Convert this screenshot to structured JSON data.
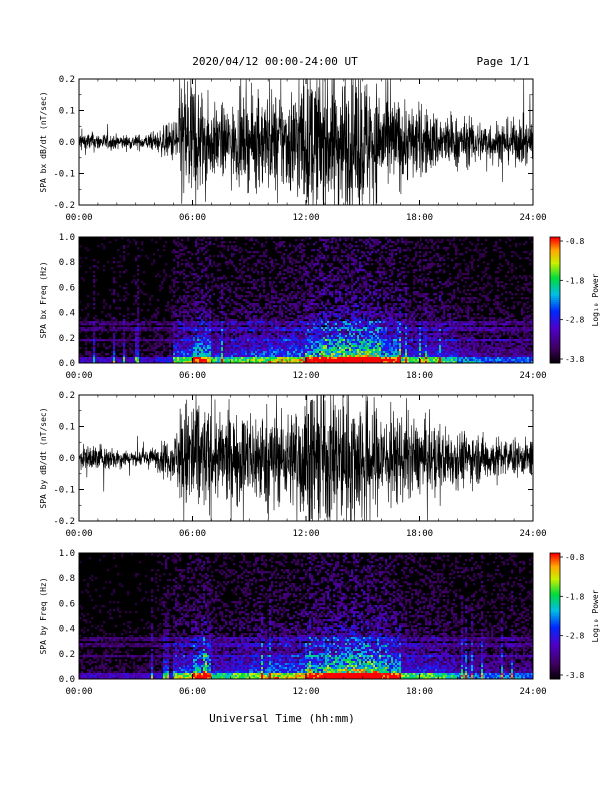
{
  "header": {
    "title": "2020/04/12  00:00-24:00 UT",
    "page": "Page 1/1"
  },
  "footer": {
    "xlabel": "Universal Time (hh:mm)"
  },
  "chart_data": [
    {
      "type": "line",
      "ylabel": "SPA bx dB/dt (nT/sec)",
      "xlabel": "",
      "x_ticks": [
        "00:00",
        "06:00",
        "12:00",
        "18:00",
        "24:00"
      ],
      "xlim": [
        "00:00",
        "24:00"
      ],
      "ylim": [
        -0.2,
        0.2
      ],
      "y_ticks": [
        "0.2",
        "0.1",
        "0.0",
        "-0.1",
        "-0.2"
      ],
      "grid": false,
      "series": [
        {
          "x": [
            "00:00",
            "01:00",
            "02:00",
            "03:00",
            "04:00",
            "05:00",
            "05:30",
            "06:00",
            "07:00",
            "08:00",
            "09:00",
            "10:00",
            "11:00",
            "12:00",
            "13:00",
            "14:00",
            "15:00",
            "16:00",
            "17:00",
            "18:00",
            "19:00",
            "20:00",
            "21:00",
            "22:00",
            "23:00",
            "24:00"
          ],
          "amplitude": [
            0.03,
            0.025,
            0.02,
            0.02,
            0.025,
            0.06,
            0.2,
            0.2,
            0.1,
            0.1,
            0.12,
            0.14,
            0.14,
            0.2,
            0.2,
            0.2,
            0.2,
            0.15,
            0.12,
            0.1,
            0.08,
            0.07,
            0.06,
            0.06,
            0.06,
            0.07
          ],
          "color": "#000000"
        }
      ]
    },
    {
      "type": "heatmap",
      "ylabel": "SPA bx Freq (Hz)",
      "x_ticks": [
        "00:00",
        "06:00",
        "12:00",
        "18:00",
        "24:00"
      ],
      "y_ticks": [
        "1.0",
        "0.8",
        "0.6",
        "0.4",
        "0.2",
        "0.0"
      ],
      "ylim": [
        0.0,
        1.0
      ],
      "colorbar": {
        "label": "Log₁₀ Power",
        "ticks": [
          "-0.8",
          "-1.8",
          "-2.8",
          "-3.8"
        ],
        "range": [
          -3.8,
          -0.8
        ]
      },
      "activity_by_hour": [
        0.1,
        0.1,
        0.1,
        0.1,
        0.15,
        0.5,
        0.7,
        0.4,
        0.45,
        0.5,
        0.55,
        0.55,
        0.75,
        0.85,
        0.95,
        0.95,
        0.7,
        0.45,
        0.45,
        0.4,
        0.3,
        0.25,
        0.25,
        0.25
      ]
    },
    {
      "type": "line",
      "ylabel": "SPA by dB/dt (nT/sec)",
      "xlabel": "",
      "x_ticks": [
        "00:00",
        "06:00",
        "12:00",
        "18:00",
        "24:00"
      ],
      "xlim": [
        "00:00",
        "24:00"
      ],
      "ylim": [
        -0.2,
        0.2
      ],
      "y_ticks": [
        "0.2",
        "0.1",
        "0.0",
        "-0.1",
        "-0.2"
      ],
      "grid": false,
      "series": [
        {
          "x": [
            "00:00",
            "01:00",
            "02:00",
            "03:00",
            "04:00",
            "05:00",
            "05:30",
            "06:00",
            "07:00",
            "08:00",
            "09:00",
            "10:00",
            "11:00",
            "12:00",
            "13:00",
            "14:00",
            "15:00",
            "16:00",
            "17:00",
            "18:00",
            "19:00",
            "20:00",
            "21:00",
            "22:00",
            "23:00",
            "24:00"
          ],
          "amplitude": [
            0.03,
            0.04,
            0.03,
            0.02,
            0.03,
            0.06,
            0.15,
            0.2,
            0.12,
            0.12,
            0.13,
            0.14,
            0.12,
            0.2,
            0.2,
            0.19,
            0.18,
            0.14,
            0.12,
            0.1,
            0.09,
            0.08,
            0.07,
            0.06,
            0.05,
            0.05
          ],
          "color": "#000000"
        }
      ]
    },
    {
      "type": "heatmap",
      "ylabel": "SPA by Freq (Hz)",
      "x_ticks": [
        "00:00",
        "06:00",
        "12:00",
        "18:00",
        "24:00"
      ],
      "y_ticks": [
        "1.0",
        "0.8",
        "0.6",
        "0.4",
        "0.2",
        "0.0"
      ],
      "ylim": [
        0.0,
        1.0
      ],
      "colorbar": {
        "label": "Log₁₀ Power",
        "ticks": [
          "-0.8",
          "-1.8",
          "-2.8",
          "-3.8"
        ],
        "range": [
          -3.8,
          -0.8
        ]
      },
      "activity_by_hour": [
        0.1,
        0.1,
        0.1,
        0.1,
        0.15,
        0.5,
        0.7,
        0.4,
        0.45,
        0.5,
        0.55,
        0.55,
        0.75,
        0.9,
        0.95,
        0.95,
        0.75,
        0.45,
        0.45,
        0.4,
        0.3,
        0.25,
        0.25,
        0.25
      ]
    }
  ]
}
